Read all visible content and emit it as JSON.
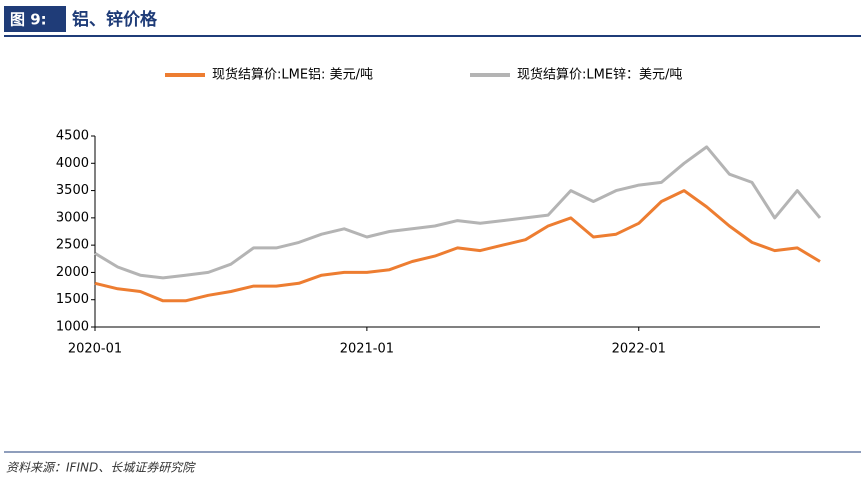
{
  "chart_data": {
    "type": "line",
    "label": "图 9:",
    "title": "铝、锌价格",
    "source": "资料来源：IFIND、长城证券研究院",
    "x": [
      "2020-01",
      "2020-02",
      "2020-03",
      "2020-04",
      "2020-05",
      "2020-06",
      "2020-07",
      "2020-08",
      "2020-09",
      "2020-10",
      "2020-11",
      "2020-12",
      "2021-01",
      "2021-02",
      "2021-03",
      "2021-04",
      "2021-05",
      "2021-06",
      "2021-07",
      "2021-08",
      "2021-09",
      "2021-10",
      "2021-11",
      "2021-12",
      "2022-01",
      "2022-02",
      "2022-03",
      "2022-04",
      "2022-05",
      "2022-06",
      "2022-07",
      "2022-08",
      "2022-09"
    ],
    "xticks": [
      "2020-01",
      "2021-01",
      "2022-01"
    ],
    "series": [
      {
        "name": "现货结算价:LME铝: 美元/吨",
        "color": "#ed7d31",
        "values": [
          1800,
          1700,
          1650,
          1480,
          1480,
          1580,
          1650,
          1750,
          1750,
          1800,
          1950,
          2000,
          2000,
          2050,
          2200,
          2300,
          2450,
          2400,
          2500,
          2600,
          2850,
          3000,
          2650,
          2700,
          2900,
          3300,
          3500,
          3200,
          2850,
          2550,
          2400,
          2450,
          2200
        ]
      },
      {
        "name": "现货结算价:LME锌：美元/吨",
        "color": "#b4b4b4",
        "values": [
          2350,
          2100,
          1950,
          1900,
          1950,
          2000,
          2150,
          2450,
          2450,
          2550,
          2700,
          2800,
          2650,
          2750,
          2800,
          2850,
          2950,
          2900,
          2950,
          3000,
          3050,
          3500,
          3300,
          3500,
          3600,
          3650,
          4000,
          4300,
          3800,
          3650,
          3000,
          3500,
          3000
        ]
      }
    ],
    "ylim": [
      1000,
      4500
    ],
    "yticks": [
      1000,
      1500,
      2000,
      2500,
      3000,
      3500,
      4000,
      4500
    ],
    "grid": false
  }
}
